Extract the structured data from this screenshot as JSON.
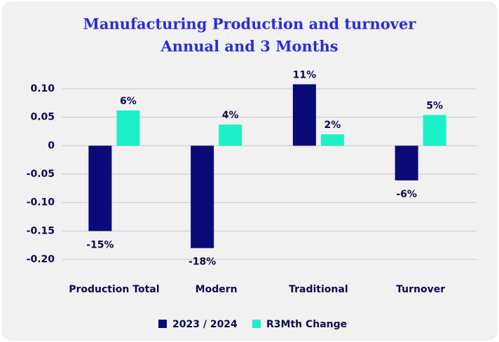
{
  "chart_data": {
    "type": "bar",
    "title": "Manufacturing Production and turnover",
    "subtitle": "Annual and 3 Months",
    "categories": [
      "Production Total",
      "Modern",
      "Traditional",
      "Turnover"
    ],
    "series": [
      {
        "name": "2023 / 2024",
        "color": "#0a0a78",
        "values": [
          -0.15,
          -0.18,
          0.108,
          -0.061
        ],
        "value_labels": [
          "-15%",
          "-18%",
          "11%",
          "-6%"
        ]
      },
      {
        "name": "R3Mth Change",
        "color": "#1cf0c8",
        "values": [
          0.062,
          0.037,
          0.02,
          0.054
        ],
        "value_labels": [
          "6%",
          "4%",
          "2%",
          "5%"
        ]
      }
    ],
    "ylim": [
      -0.2,
      0.1
    ],
    "yticks": [
      {
        "value": 0.1,
        "label": "0.10"
      },
      0.05,
      0,
      -0.05,
      {
        "value": -0.1,
        "label": "-0.10"
      },
      -0.15,
      {
        "value": -0.2,
        "label": "-0.20"
      }
    ],
    "grid": true,
    "legend": "bottom"
  }
}
